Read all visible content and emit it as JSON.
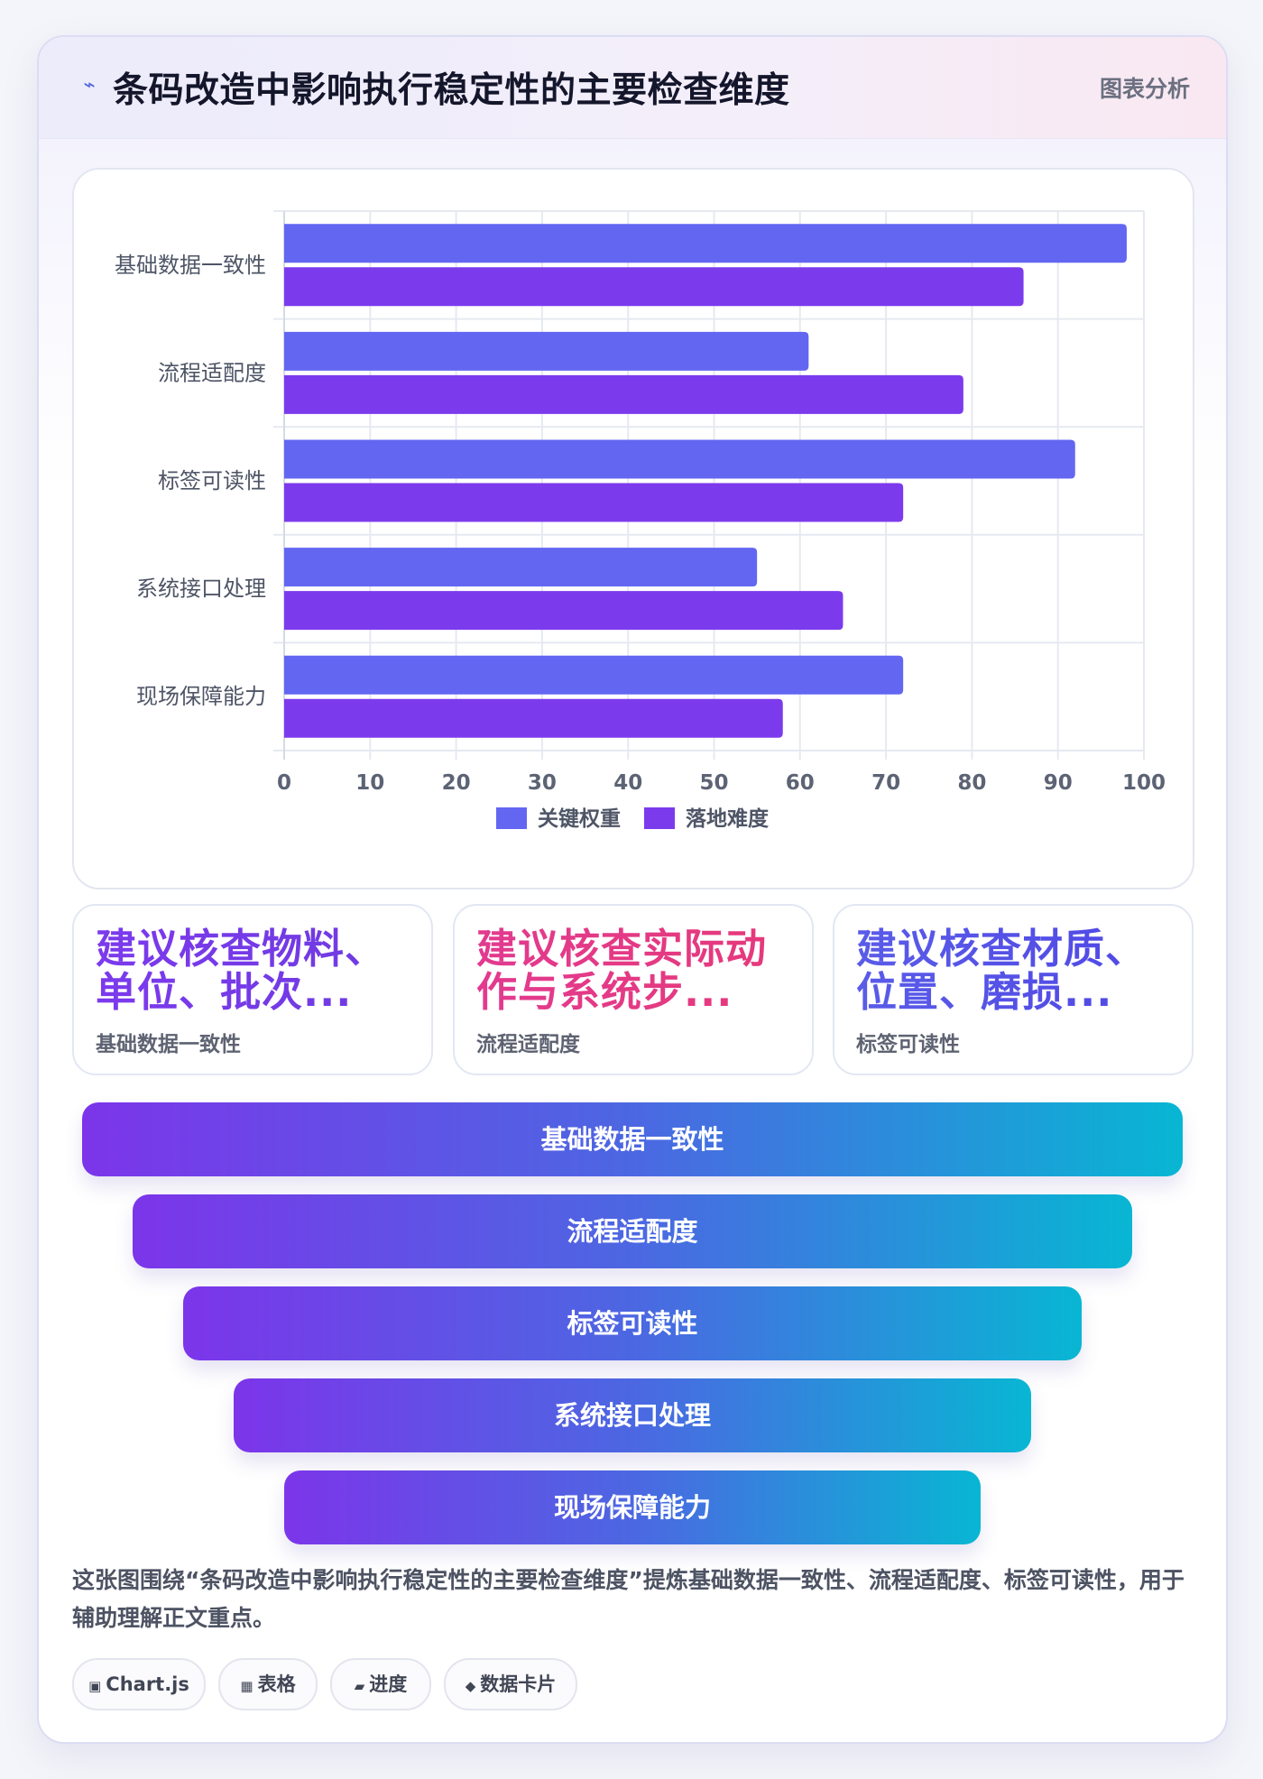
{
  "header": {
    "icon": "lightning-icon",
    "icon_glyph": "⌁",
    "title": "条码改造中影响执行稳定性的主要检查维度",
    "tag": "图表分析"
  },
  "chart_data": {
    "type": "bar",
    "orientation": "horizontal",
    "categories": [
      "基础数据一致性",
      "流程适配度",
      "标签可读性",
      "系统接口处理",
      "现场保障能力"
    ],
    "series": [
      {
        "name": "关键权重",
        "values": [
          98,
          61,
          92,
          55,
          72
        ],
        "color": "#6366f1"
      },
      {
        "name": "落地难度",
        "values": [
          86,
          79,
          72,
          65,
          58
        ],
        "color": "#7c3aed"
      }
    ],
    "xlim": [
      0,
      100
    ],
    "xticks": [
      0,
      10,
      20,
      30,
      40,
      50,
      60,
      70,
      80,
      90,
      100
    ],
    "grid": true,
    "legend_position": "bottom"
  },
  "stats": [
    {
      "value": "建议核查物料、单位、批次...",
      "label": "基础数据一致性",
      "color": "purple-gradient"
    },
    {
      "value": "建议核查实际动作与系统步...",
      "label": "流程适配度",
      "color": "pink-gradient"
    },
    {
      "value": "建议核查材质、位置、磨损...",
      "label": "标签可读性",
      "color": "indigo-gradient"
    }
  ],
  "funnel": [
    "基础数据一致性",
    "流程适配度",
    "标签可读性",
    "系统接口处理",
    "现场保障能力"
  ],
  "summary": "这张图围绕“条码改造中影响执行稳定性的主要检查维度”提炼基础数据一致性、流程适配度、标签可读性，用于辅助理解正文重点。",
  "chips": [
    {
      "icon": "chart-icon",
      "glyph": "▣",
      "label": "Chart.js"
    },
    {
      "icon": "table-icon",
      "glyph": "▦",
      "label": "表格"
    },
    {
      "icon": "progress-icon",
      "glyph": "▰",
      "label": "进度"
    },
    {
      "icon": "data-card-icon",
      "glyph": "◆",
      "label": "数据卡片"
    }
  ]
}
